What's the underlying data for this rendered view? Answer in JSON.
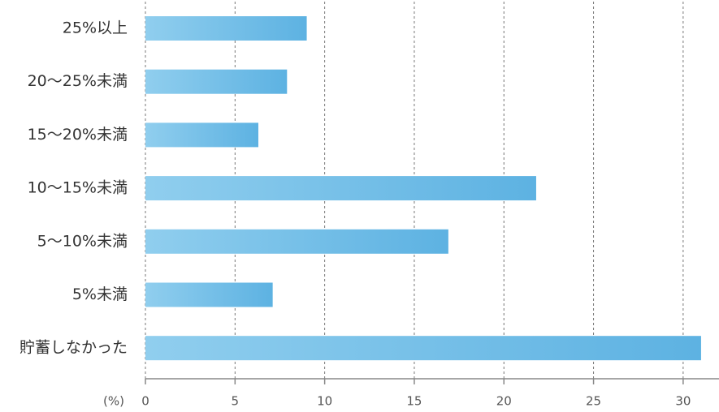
{
  "chart_data": {
    "type": "bar",
    "orientation": "horizontal",
    "categories": [
      "25%以上",
      "20～25%未満",
      "15～20%未満",
      "10～15%未満",
      "5～10%未満",
      "5%未満",
      "貯蓄しなかった"
    ],
    "values": [
      9.0,
      7.9,
      6.3,
      21.8,
      16.9,
      7.1,
      31.0
    ],
    "color": "#5db2e2",
    "gradient_start_color": "#90ceee",
    "x_label": "(%)",
    "xlim": [
      0,
      32
    ],
    "xticks": [
      0,
      5,
      10,
      15,
      20,
      25,
      30
    ],
    "grid": true
  }
}
